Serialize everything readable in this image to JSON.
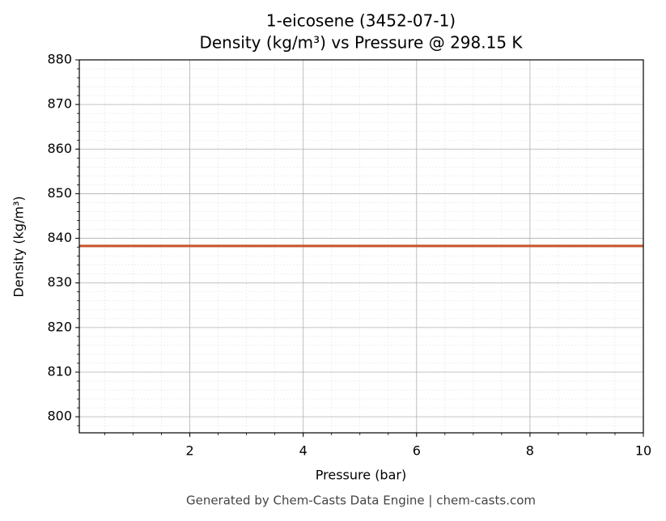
{
  "chart_data": {
    "type": "line",
    "title": "1-eicosene (3452-07-1)",
    "subtitle": "Density (kg/m³) vs Pressure @ 298.15 K",
    "x_label": "Pressure (bar)",
    "y_label": "Density (kg/m³)",
    "footer": "Generated by Chem-Casts Data Engine | chem-casts.com",
    "x": [
      0.05,
      2,
      4,
      6,
      8,
      10
    ],
    "series": [
      {
        "name": "Density",
        "color": "#c8532b",
        "values": [
          838.3,
          838.3,
          838.3,
          838.3,
          838.3,
          838.3
        ]
      }
    ],
    "xlim": [
      0.05,
      10
    ],
    "xticks": [
      2,
      4,
      6,
      8,
      10
    ],
    "ylim": [
      796.4,
      880
    ],
    "yticks": [
      800,
      810,
      820,
      830,
      840,
      850,
      860,
      870,
      880
    ],
    "grid": true,
    "minor_grid": true
  }
}
